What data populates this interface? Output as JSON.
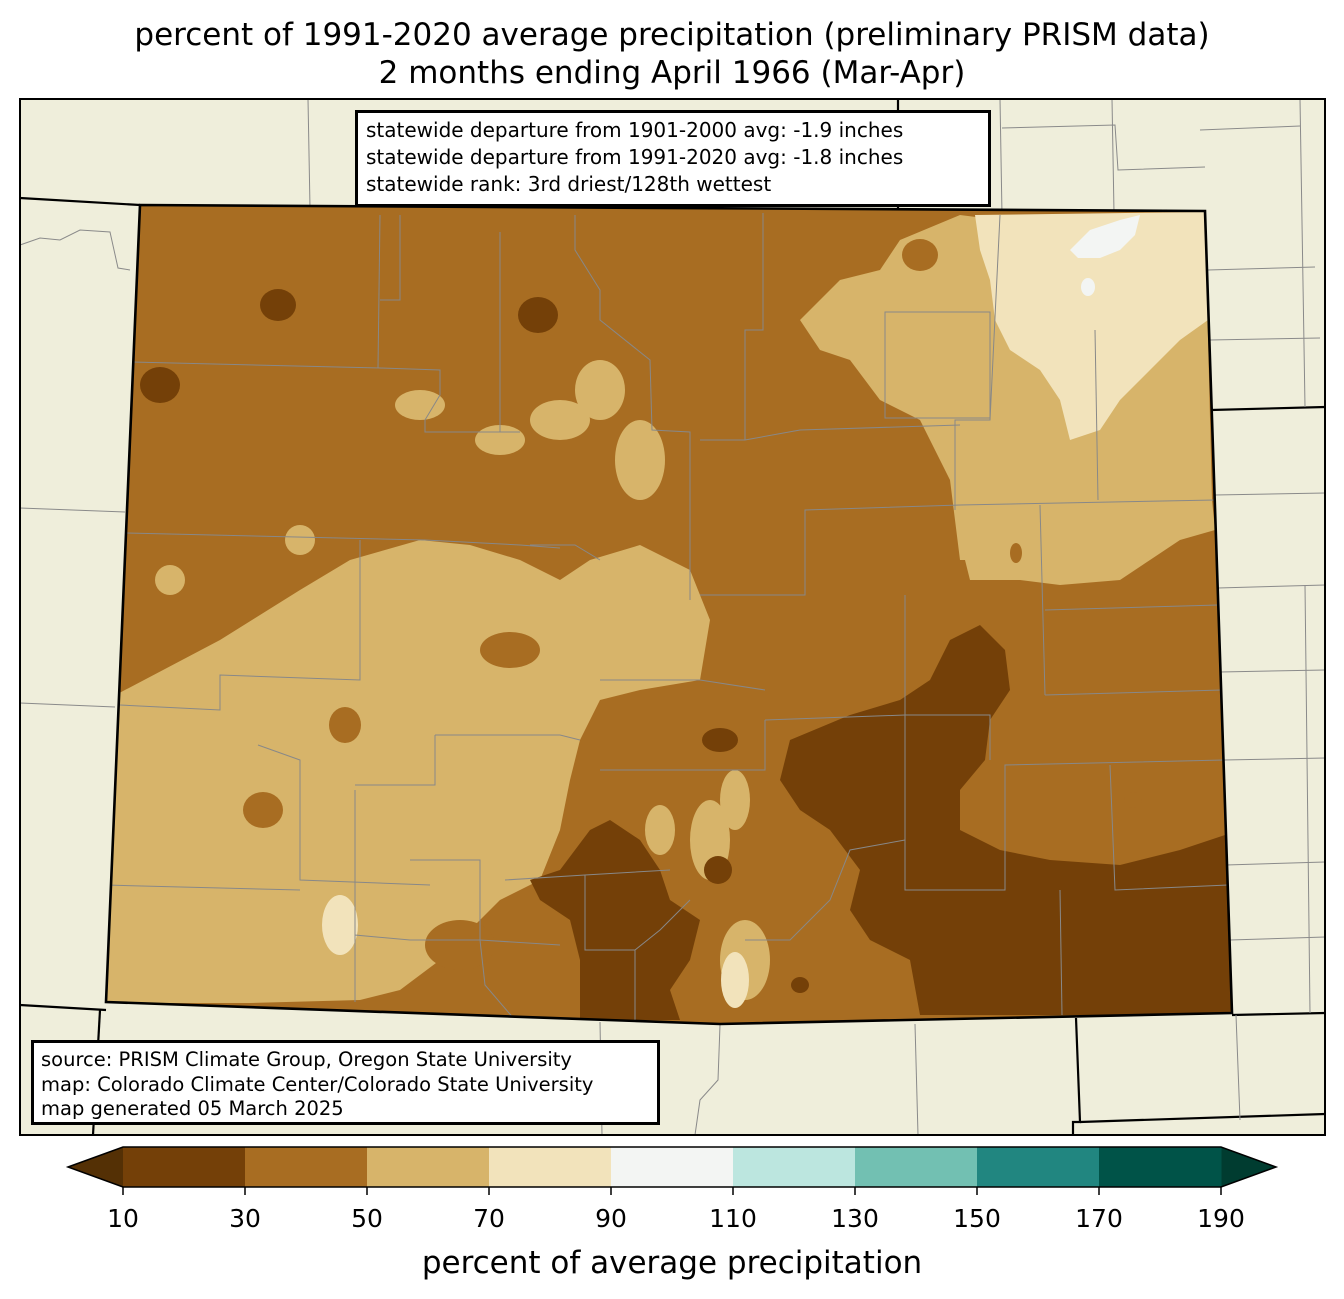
{
  "title_line1": "percent of 1991-2020 average precipitation (preliminary PRISM data)",
  "title_line2": "2 months ending April 1966 (Mar-Apr)",
  "stats": {
    "line1": "statewide departure from 1901-2000 avg: -1.9 inches",
    "line2": "statewide departure from 1991-2020 avg: -1.8 inches",
    "line3": "statewide rank: 3rd driest/128th wettest"
  },
  "source": {
    "line1": "source: PRISM Climate Group, Oregon State University",
    "line2": "map: Colorado Climate Center/Colorado State University",
    "line3": "map generated 05 March 2025"
  },
  "colorbar": {
    "label": "percent of average precipitation",
    "ticks": [
      "10",
      "30",
      "50",
      "70",
      "90",
      "110",
      "130",
      "150",
      "170",
      "190"
    ],
    "under_color": "#543005",
    "over_color": "#003c30",
    "colors": [
      "#744008",
      "#a86d22",
      "#d7b46a",
      "#f2e3bb",
      "#f3f5f3",
      "#bce6df",
      "#72c0b2",
      "#218680",
      "#005348"
    ]
  },
  "map_colors": {
    "background_land": "#efeedb",
    "very_dry": "#744008",
    "dry": "#a86d22",
    "mod": "#d7b46a",
    "light": "#f2e3bb",
    "near_normal": "#f3f5f3"
  }
}
